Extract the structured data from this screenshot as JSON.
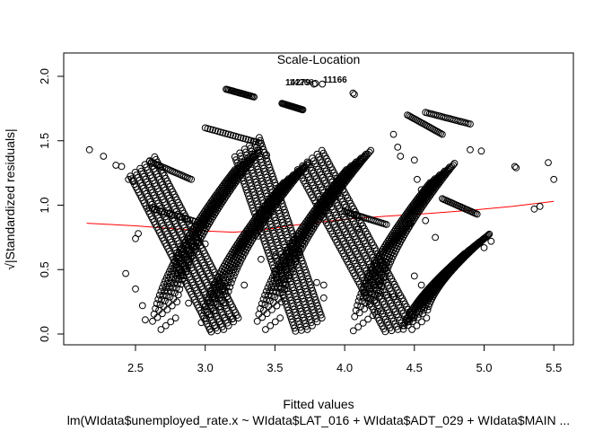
{
  "chart_data": {
    "type": "scatter",
    "title": "Scale-Location",
    "xlabel": "Fitted values",
    "ylabel": "√|Standardized residuals|",
    "subtitle": "lm(WIdata$unemployed_rate.x ~ WIdata$LAT_016 + WIdata$ADT_029 + WIdata$MAIN ...",
    "xlim": [
      2.1,
      5.55
    ],
    "ylim": [
      0.0,
      2.0
    ],
    "xticks": [
      "2.5",
      "3.0",
      "3.5",
      "4.0",
      "4.5",
      "5.0",
      "5.5"
    ],
    "yticks": [
      "0.0",
      "0.5",
      "1.0",
      "1.5",
      "2.0"
    ],
    "outlier_labels": [
      "14279",
      "14268",
      "11166"
    ],
    "outliers": [
      {
        "x": 3.78,
        "y": 1.94
      },
      {
        "x": 3.79,
        "y": 1.945
      },
      {
        "x": 3.84,
        "y": 1.94
      }
    ],
    "smooth_line": {
      "color": "#ff0000",
      "x": [
        2.15,
        2.5,
        2.8,
        3.0,
        3.2,
        3.4,
        3.6,
        3.8,
        4.0,
        4.3,
        4.6,
        4.9,
        5.2,
        5.5
      ],
      "y": [
        0.86,
        0.84,
        0.815,
        0.8,
        0.79,
        0.805,
        0.84,
        0.865,
        0.89,
        0.915,
        0.935,
        0.96,
        0.99,
        1.03
      ]
    },
    "clusters": [
      {
        "x": [
          2.7,
          3.3
        ],
        "y": [
          0.05,
          1.35
        ],
        "shape": "rise"
      },
      {
        "x": [
          2.55,
          3.15
        ],
        "y": [
          1.3,
          0.05
        ],
        "shape": "fall"
      },
      {
        "x": [
          3.05,
          3.65
        ],
        "y": [
          0.05,
          1.25
        ],
        "shape": "rise"
      },
      {
        "x": [
          3.3,
          3.75
        ],
        "y": [
          1.45,
          0.05
        ],
        "shape": "fall"
      },
      {
        "x": [
          3.45,
          4.1
        ],
        "y": [
          0.05,
          1.35
        ],
        "shape": "rise"
      },
      {
        "x": [
          3.75,
          4.4
        ],
        "y": [
          1.35,
          0.05
        ],
        "shape": "fall"
      },
      {
        "x": [
          4.15,
          4.7
        ],
        "y": [
          0.1,
          1.25
        ],
        "shape": "rise"
      },
      {
        "x": [
          4.5,
          4.95
        ],
        "y": [
          0.05,
          0.7
        ],
        "shape": "rise"
      }
    ],
    "bands": [
      {
        "x": [
          3.0,
          3.4
        ],
        "y": [
          1.6,
          1.48
        ]
      },
      {
        "x": [
          3.55,
          3.7
        ],
        "y": [
          1.79,
          1.74
        ]
      },
      {
        "x": [
          4.58,
          4.9
        ],
        "y": [
          1.72,
          1.63
        ]
      },
      {
        "x": [
          4.45,
          4.7
        ],
        "y": [
          1.7,
          1.55
        ]
      },
      {
        "x": [
          3.15,
          3.35
        ],
        "y": [
          1.9,
          1.84
        ]
      },
      {
        "x": [
          2.6,
          2.9
        ],
        "y": [
          1.34,
          1.2
        ]
      },
      {
        "x": [
          4.7,
          4.95
        ],
        "y": [
          1.05,
          0.93
        ]
      },
      {
        "x": [
          2.6,
          3.0
        ],
        "y": [
          0.98,
          0.85
        ]
      },
      {
        "x": [
          4.0,
          4.3
        ],
        "y": [
          0.95,
          0.85
        ]
      }
    ],
    "scatter_points": [
      {
        "x": 2.17,
        "y": 1.43
      },
      {
        "x": 2.27,
        "y": 1.38
      },
      {
        "x": 2.36,
        "y": 1.31
      },
      {
        "x": 2.4,
        "y": 1.3
      },
      {
        "x": 2.45,
        "y": 1.2
      },
      {
        "x": 2.48,
        "y": 1.19
      },
      {
        "x": 2.43,
        "y": 0.47
      },
      {
        "x": 2.5,
        "y": 0.35
      },
      {
        "x": 2.55,
        "y": 0.22
      },
      {
        "x": 2.57,
        "y": 0.11
      },
      {
        "x": 2.5,
        "y": 0.74
      },
      {
        "x": 2.52,
        "y": 0.78
      },
      {
        "x": 2.8,
        "y": 0.47
      },
      {
        "x": 2.88,
        "y": 0.24
      },
      {
        "x": 3.0,
        "y": 0.7
      },
      {
        "x": 3.1,
        "y": 0.27
      },
      {
        "x": 3.2,
        "y": 0.12
      },
      {
        "x": 3.28,
        "y": 0.38
      },
      {
        "x": 3.38,
        "y": 0.76
      },
      {
        "x": 3.4,
        "y": 0.58
      },
      {
        "x": 3.5,
        "y": 0.6
      },
      {
        "x": 3.44,
        "y": 1.39
      },
      {
        "x": 3.93,
        "y": 1.1
      },
      {
        "x": 4.02,
        "y": 1.22
      },
      {
        "x": 4.07,
        "y": 1.86
      },
      {
        "x": 4.06,
        "y": 1.87
      },
      {
        "x": 4.35,
        "y": 1.55
      },
      {
        "x": 4.38,
        "y": 1.45
      },
      {
        "x": 4.4,
        "y": 1.38
      },
      {
        "x": 4.5,
        "y": 1.35
      },
      {
        "x": 4.52,
        "y": 1.2
      },
      {
        "x": 4.55,
        "y": 1.12
      },
      {
        "x": 4.47,
        "y": 0.86
      },
      {
        "x": 4.58,
        "y": 0.88
      },
      {
        "x": 4.65,
        "y": 0.75
      },
      {
        "x": 4.5,
        "y": 0.45
      },
      {
        "x": 4.55,
        "y": 0.38
      },
      {
        "x": 4.22,
        "y": 0.45
      },
      {
        "x": 4.25,
        "y": 0.38
      },
      {
        "x": 4.3,
        "y": 0.3
      },
      {
        "x": 4.35,
        "y": 0.29
      },
      {
        "x": 4.9,
        "y": 1.43
      },
      {
        "x": 4.98,
        "y": 1.42
      },
      {
        "x": 4.95,
        "y": 0.7
      },
      {
        "x": 5.0,
        "y": 0.67
      },
      {
        "x": 5.05,
        "y": 0.72
      },
      {
        "x": 5.22,
        "y": 1.3
      },
      {
        "x": 5.23,
        "y": 1.29
      },
      {
        "x": 5.36,
        "y": 0.97
      },
      {
        "x": 5.4,
        "y": 0.99
      },
      {
        "x": 5.46,
        "y": 1.33
      },
      {
        "x": 5.5,
        "y": 1.2
      },
      {
        "x": 4.1,
        "y": 0.82
      },
      {
        "x": 3.8,
        "y": 0.4
      },
      {
        "x": 3.85,
        "y": 0.38
      },
      {
        "x": 3.85,
        "y": 0.28
      }
    ]
  }
}
